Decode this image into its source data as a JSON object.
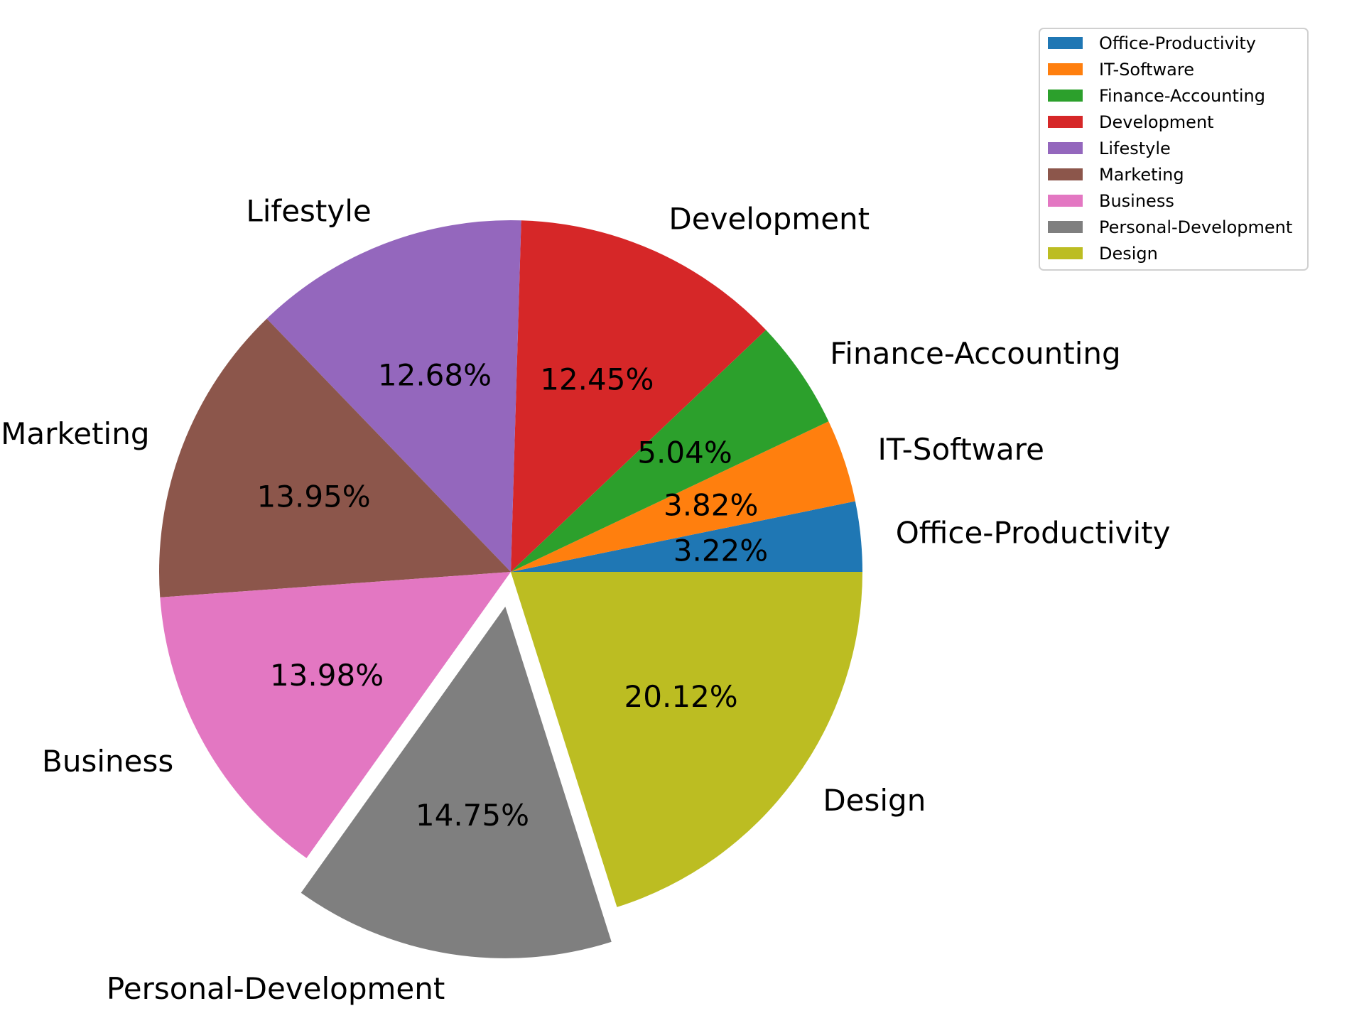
{
  "chart_data": {
    "type": "pie",
    "title": "",
    "legend_position": "top-right",
    "start_angle_deg": 0,
    "direction": "counterclockwise",
    "slices": [
      {
        "label": "Office-Productivity",
        "value": 3.22,
        "pct_label": "3.22%",
        "color": "#1f77b4",
        "explode": false
      },
      {
        "label": "IT-Software",
        "value": 3.82,
        "pct_label": "3.82%",
        "color": "#ff7f0e",
        "explode": false
      },
      {
        "label": "Finance-Accounting",
        "value": 5.04,
        "pct_label": "5.04%",
        "color": "#2ca02c",
        "explode": false
      },
      {
        "label": "Development",
        "value": 12.45,
        "pct_label": "12.45%",
        "color": "#d62728",
        "explode": false
      },
      {
        "label": "Lifestyle",
        "value": 12.68,
        "pct_label": "12.68%",
        "color": "#9467bd",
        "explode": false
      },
      {
        "label": "Marketing",
        "value": 13.95,
        "pct_label": "13.95%",
        "color": "#8c564b",
        "explode": false
      },
      {
        "label": "Business",
        "value": 13.98,
        "pct_label": "13.98%",
        "color": "#e377c2",
        "explode": false
      },
      {
        "label": "Personal-Development",
        "value": 14.75,
        "pct_label": "14.75%",
        "color": "#7f7f7f",
        "explode": true
      },
      {
        "label": "Design",
        "value": 20.12,
        "pct_label": "20.12%",
        "color": "#bcbd22",
        "explode": false
      }
    ]
  }
}
